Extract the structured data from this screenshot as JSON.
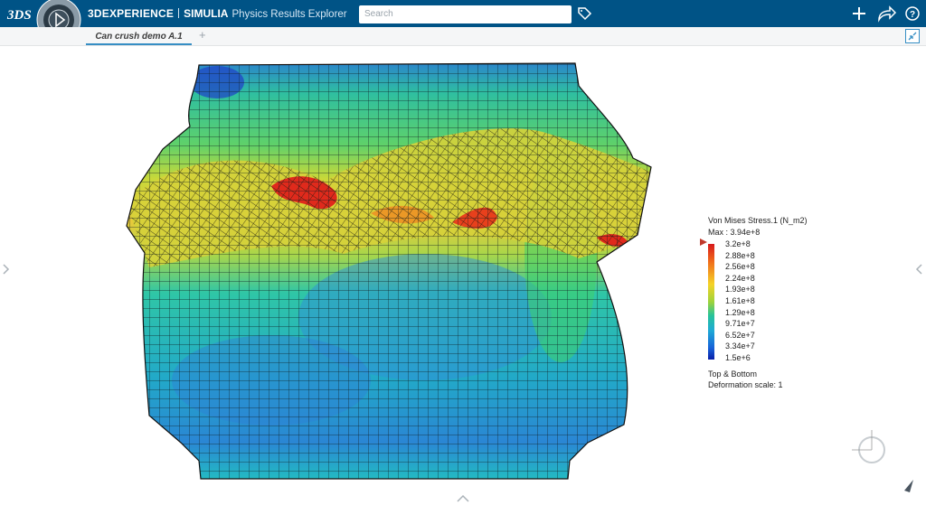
{
  "header": {
    "brand": "3DEXPERIENCE",
    "platform": "SIMULIA",
    "app": "Physics Results Explorer",
    "search_placeholder": "Search"
  },
  "tabs": {
    "active": "Can crush demo A.1",
    "add": "+"
  },
  "legend": {
    "title": "Von Mises Stress.1 (N_m2)",
    "max": "Max : 3.94e+8",
    "labels": [
      "3.2e+8",
      "2.88e+8",
      "2.56e+8",
      "2.24e+8",
      "1.93e+8",
      "1.61e+8",
      "1.29e+8",
      "9.71e+7",
      "6.52e+7",
      "3.34e+7",
      "1.5e+6"
    ],
    "notes": [
      "Top & Bottom",
      "Deformation scale: 1"
    ]
  }
}
